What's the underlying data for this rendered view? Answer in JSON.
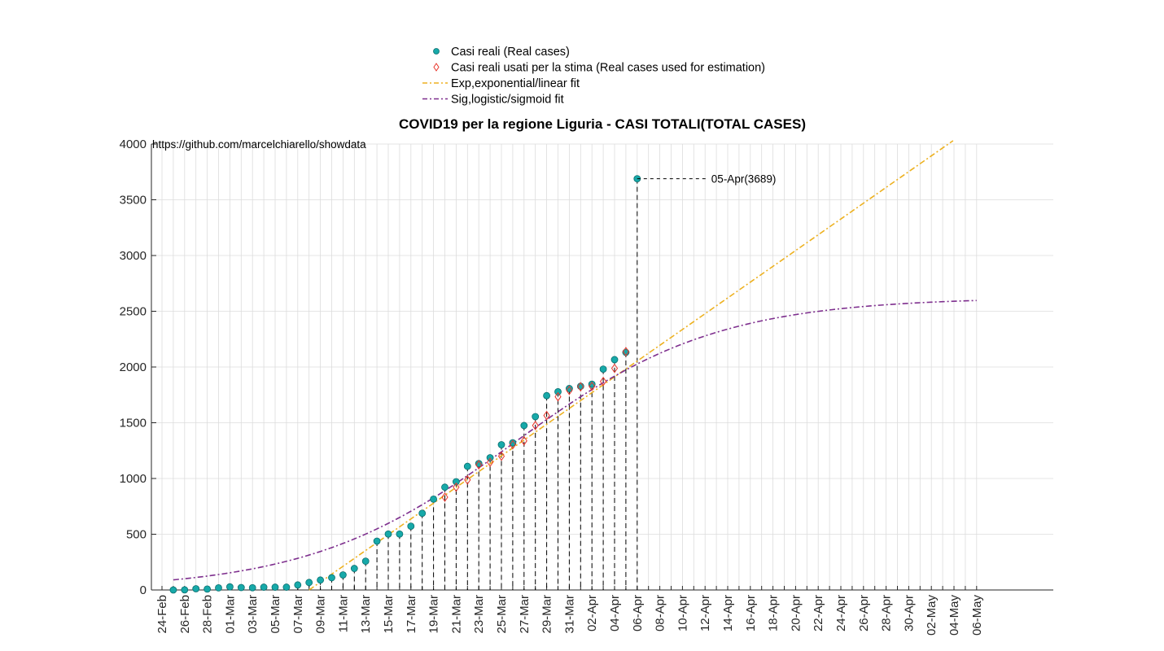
{
  "chart_data": {
    "type": "scatter",
    "title": "COVID19 per la regione Liguria - CASI TOTALI(TOTAL CASES)",
    "annotation_source": "https://github.com/marcelchiarello/showdata",
    "xlabel": "",
    "ylabel": "",
    "ylim": [
      0,
      4000
    ],
    "y_ticks": [
      0,
      500,
      1000,
      1500,
      2000,
      2500,
      3000,
      3500,
      4000
    ],
    "x_tick_labels": [
      "24-Feb",
      "26-Feb",
      "28-Feb",
      "01-Mar",
      "03-Mar",
      "05-Mar",
      "07-Mar",
      "09-Mar",
      "11-Mar",
      "13-Mar",
      "15-Mar",
      "17-Mar",
      "19-Mar",
      "21-Mar",
      "23-Mar",
      "25-Mar",
      "27-Mar",
      "29-Mar",
      "31-Mar",
      "02-Apr",
      "04-Apr",
      "06-Apr",
      "08-Apr",
      "10-Apr",
      "12-Apr",
      "14-Apr",
      "16-Apr",
      "18-Apr",
      "20-Apr",
      "22-Apr",
      "24-Apr",
      "26-Apr",
      "28-Apr",
      "30-Apr",
      "02-May",
      "04-May",
      "06-May"
    ],
    "grid": true,
    "legend_position": "top-center",
    "legend": [
      {
        "name": "Casi reali (Real cases)",
        "color": "#17a9a9",
        "marker": "circle"
      },
      {
        "name": "Casi reali usati per la stima (Real cases used for estimation)",
        "color": "#e8352b",
        "marker": "diamond"
      },
      {
        "name": "Exp,exponential/linear fit",
        "color": "#edb120",
        "marker": "dashdot"
      },
      {
        "name": "Sig,logistic/sigmoid fit",
        "color": "#7e2f8e",
        "marker": "dashdot"
      }
    ],
    "real_cases": {
      "dates": [
        "24-Feb",
        "25-Feb",
        "26-Feb",
        "27-Feb",
        "28-Feb",
        "29-Feb",
        "01-Mar",
        "02-Mar",
        "03-Mar",
        "04-Mar",
        "05-Mar",
        "06-Mar",
        "07-Mar",
        "08-Mar",
        "09-Mar",
        "10-Mar",
        "11-Mar",
        "12-Mar",
        "13-Mar",
        "14-Mar",
        "15-Mar",
        "16-Mar",
        "17-Mar",
        "18-Mar",
        "19-Mar",
        "20-Mar",
        "21-Mar",
        "22-Mar",
        "23-Mar",
        "24-Mar",
        "25-Mar",
        "26-Mar",
        "27-Mar",
        "28-Mar",
        "29-Mar",
        "30-Mar",
        "31-Mar",
        "01-Apr",
        "02-Apr",
        "03-Apr",
        "04-Apr",
        "05-Apr"
      ],
      "values": [
        0,
        1,
        11,
        8,
        19,
        28,
        22,
        20,
        25,
        25,
        25,
        45,
        67,
        89,
        110,
        135,
        193,
        258,
        438,
        502,
        502,
        572,
        688,
        815,
        922,
        971,
        1109,
        1134,
        1186,
        1303,
        1320,
        1475,
        1555,
        1743,
        1778,
        1807,
        1827,
        1846,
        1981,
        2066,
        2131,
        3689
      ]
    },
    "estimation_cases": {
      "dates": [
        "19-Mar",
        "20-Mar",
        "21-Mar",
        "22-Mar",
        "23-Mar",
        "24-Mar",
        "25-Mar",
        "26-Mar",
        "27-Mar",
        "28-Mar",
        "29-Mar",
        "30-Mar",
        "31-Mar",
        "01-Apr",
        "02-Apr",
        "03-Apr",
        "04-Apr"
      ],
      "values": [
        832,
        922,
        987,
        1122,
        1145,
        1200,
        1303,
        1338,
        1475,
        1565,
        1733,
        1790,
        1823,
        1827,
        1870,
        1988,
        2138
      ]
    },
    "exp_fit": {
      "type": "linear",
      "x_start": "07-Mar",
      "slope_per_day": 70.8,
      "y_end": 4030
    },
    "sig_fit": {
      "type": "logistic",
      "K": 2624,
      "midpoint": "25-Mar",
      "rate_per_day": 0.111,
      "x_start": "24-Feb",
      "x_end": "05-May"
    },
    "highlight": {
      "date": "05-Apr",
      "value": 3689,
      "label": "05-Apr(3689)"
    }
  }
}
